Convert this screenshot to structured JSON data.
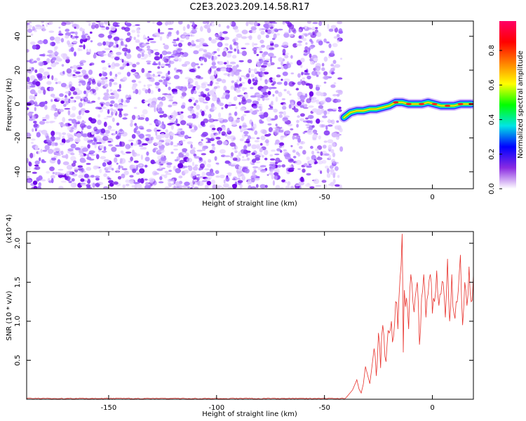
{
  "title": "C2E3.2023.209.14.58.R17",
  "chart_data": [
    {
      "type": "heatmap",
      "xlabel": "Height of straight line (km)",
      "ylabel": "Frequency (Hz)",
      "xlim": [
        -188,
        19
      ],
      "ylim": [
        -50,
        49
      ],
      "xticks": [
        -150,
        -100,
        -50,
        0
      ],
      "yticks": [
        -40,
        -20,
        0,
        20,
        40
      ],
      "signal_track": {
        "x": [
          -41,
          -38,
          -35,
          -32,
          -29,
          -26,
          -23,
          -20,
          -17,
          -14,
          -11,
          -8,
          -5,
          -2,
          1,
          4,
          7,
          10,
          13,
          16,
          18
        ],
        "y": [
          -8,
          -5,
          -4,
          -4,
          -3,
          -3,
          -2,
          -1,
          1,
          1,
          0,
          0,
          0,
          1,
          0,
          -1,
          -1,
          -1,
          0,
          0,
          0
        ]
      },
      "noise_region_x": [
        -188,
        -42
      ],
      "colorbar": {
        "label": "Normalized spectral amplitude",
        "range": [
          0.0,
          0.97
        ],
        "ticks": [
          "0.0",
          "0.2",
          "0.4",
          "0.6",
          "0.8"
        ],
        "colors": [
          "#ffffff",
          "#8a2be2",
          "#0000ff",
          "#00e5e5",
          "#00ff00",
          "#ffff00",
          "#ff8000",
          "#ff0000",
          "#ff0066"
        ]
      },
      "grid": false
    },
    {
      "type": "line",
      "xlabel": "Height of straight line (km)",
      "ylabel": "SNR (10 * v/v)",
      "y_multiplier": "(x10^4)",
      "xlim": [
        -188,
        19
      ],
      "ylim": [
        0,
        2.15
      ],
      "xticks": [
        -150,
        -100,
        -50,
        0
      ],
      "yticks": [
        0.5,
        1.0,
        1.5,
        2.0
      ],
      "color": "#e8302a",
      "grid": false,
      "series": [
        {
          "x": [
            -188,
            -100,
            -40,
            -37,
            -35,
            -33,
            -31,
            -29,
            -27,
            -26,
            -25,
            -24,
            -23,
            -22,
            -21,
            -20,
            -19,
            -18,
            -17,
            -16,
            -15,
            -14,
            -13.5,
            -13,
            -12,
            -11,
            -10,
            -9,
            -8,
            -7,
            -6,
            -5,
            -4,
            -3,
            -2,
            -1,
            0,
            1,
            2,
            3,
            4,
            5,
            6,
            7,
            8,
            9,
            10,
            11,
            12,
            13,
            14,
            15,
            16,
            17,
            18,
            19
          ],
          "y": [
            0.01,
            0.01,
            0.02,
            0.12,
            0.25,
            0.08,
            0.42,
            0.2,
            0.65,
            0.3,
            0.85,
            0.4,
            0.95,
            0.55,
            0.7,
            0.85,
            1.0,
            0.8,
            1.25,
            0.9,
            1.55,
            2.12,
            0.6,
            1.4,
            1.3,
            0.9,
            1.6,
            1.25,
            1.3,
            1.5,
            0.7,
            1.3,
            1.6,
            1.05,
            1.35,
            1.6,
            1.1,
            1.25,
            1.65,
            1.2,
            1.35,
            1.5,
            1.05,
            1.8,
            1.0,
            1.6,
            1.1,
            1.25,
            1.4,
            1.85,
            0.95,
            1.5,
            1.2,
            1.7,
            1.25,
            1.6
          ]
        }
      ]
    }
  ]
}
